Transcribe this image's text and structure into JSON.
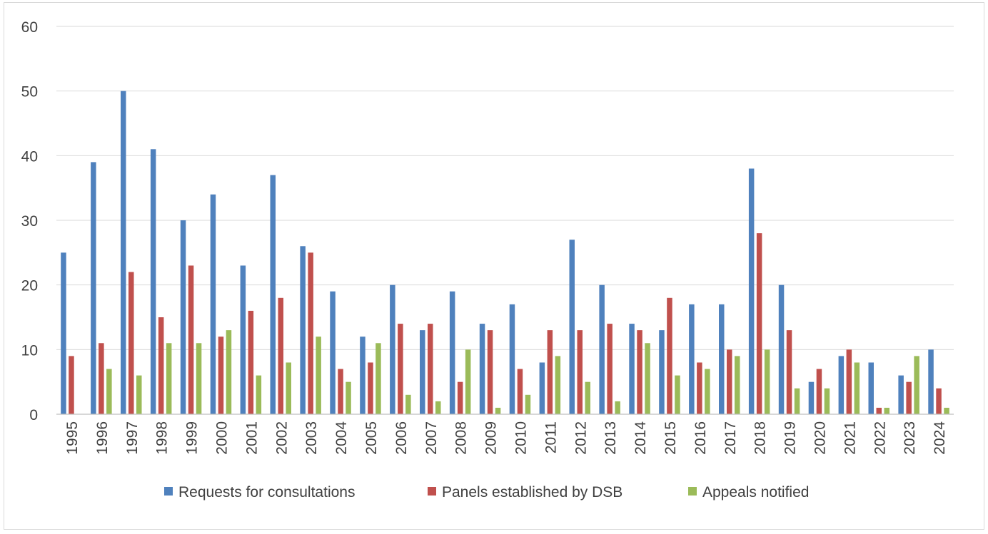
{
  "chart_data": {
    "type": "bar",
    "title": "",
    "xlabel": "",
    "ylabel": "",
    "ylim": [
      0,
      60
    ],
    "yticks": [
      0,
      10,
      20,
      30,
      40,
      50,
      60
    ],
    "grid": true,
    "legend_position": "bottom",
    "categories": [
      "1995",
      "1996",
      "1997",
      "1998",
      "1999",
      "2000",
      "2001",
      "2002",
      "2003",
      "2004",
      "2005",
      "2006",
      "2007",
      "2008",
      "2009",
      "2010",
      "2011",
      "2012",
      "2013",
      "2014",
      "2015",
      "2016",
      "2017",
      "2018",
      "2019",
      "2020",
      "2021",
      "2022",
      "2023",
      "2024"
    ],
    "series": [
      {
        "name": "Requests for consultations",
        "color": "#4f81bd",
        "values": [
          25,
          39,
          50,
          41,
          30,
          34,
          23,
          37,
          26,
          19,
          12,
          20,
          13,
          19,
          14,
          17,
          8,
          27,
          20,
          14,
          13,
          17,
          17,
          38,
          20,
          5,
          9,
          8,
          6,
          10
        ]
      },
      {
        "name": "Panels established by DSB",
        "color": "#c0504d",
        "values": [
          9,
          11,
          22,
          15,
          23,
          12,
          16,
          18,
          25,
          7,
          8,
          14,
          14,
          5,
          13,
          7,
          13,
          13,
          14,
          13,
          18,
          8,
          10,
          28,
          13,
          7,
          10,
          1,
          5,
          4
        ]
      },
      {
        "name": "Appeals notified",
        "color": "#9bbb59",
        "values": [
          0,
          7,
          6,
          11,
          11,
          13,
          6,
          8,
          12,
          5,
          11,
          3,
          2,
          10,
          1,
          3,
          9,
          5,
          2,
          11,
          6,
          7,
          9,
          10,
          4,
          4,
          8,
          1,
          9,
          1
        ]
      }
    ]
  }
}
